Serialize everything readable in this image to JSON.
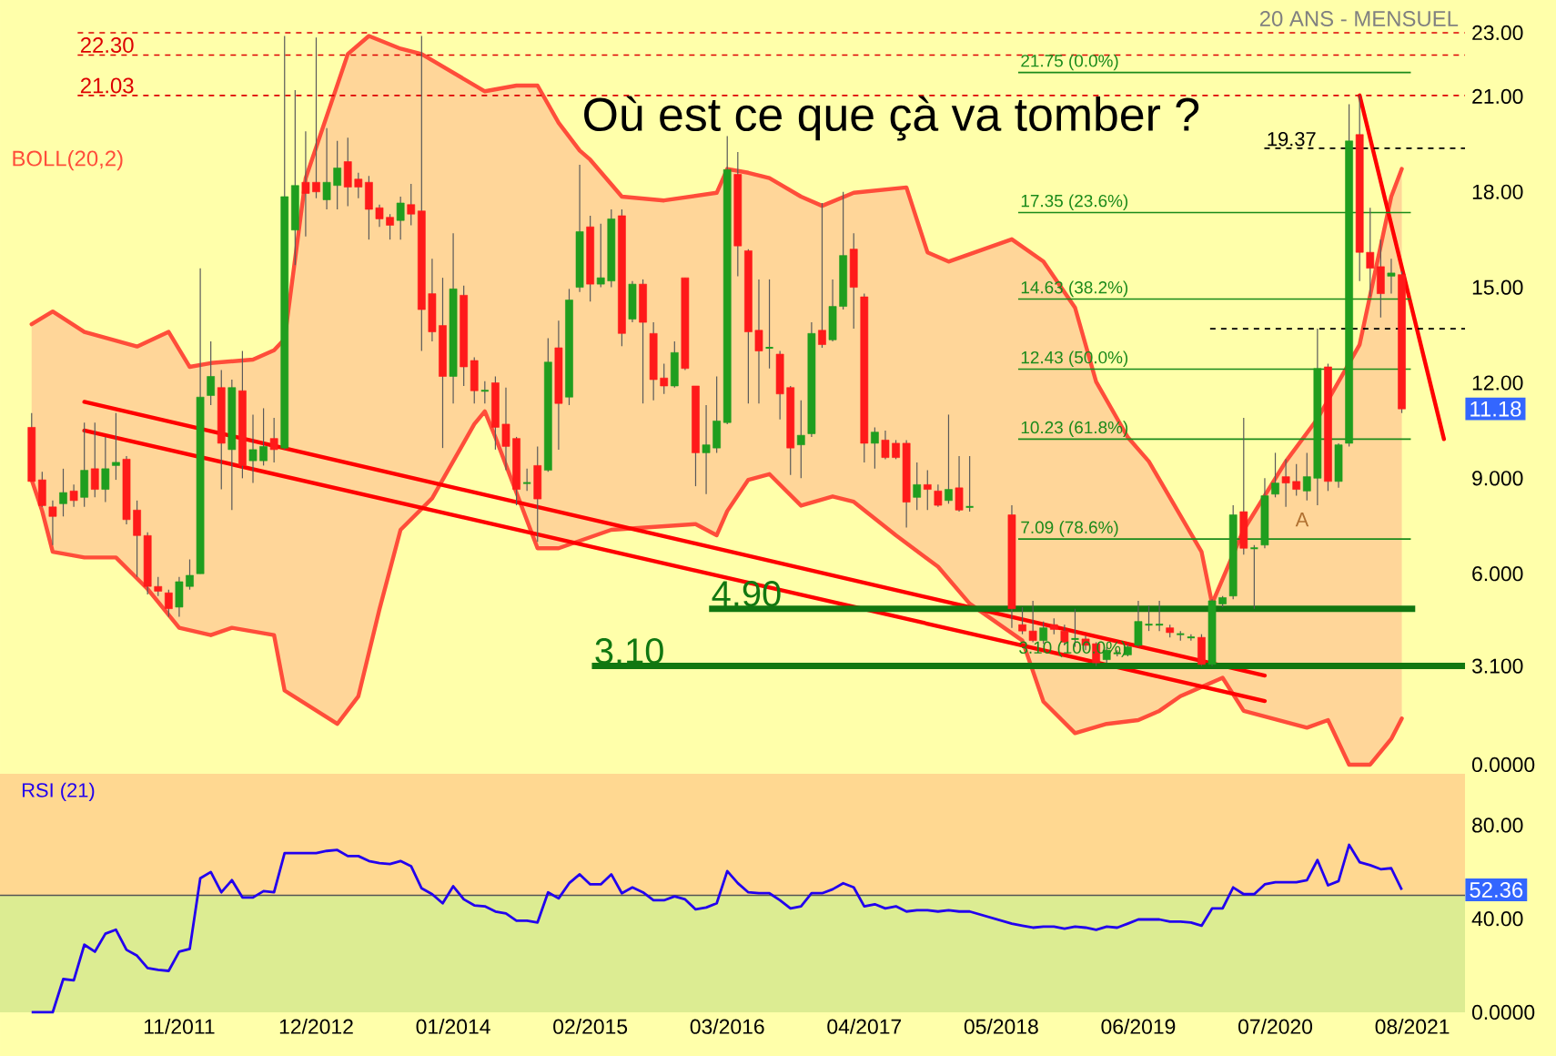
{
  "chart_data": [
    {
      "type": "candlestick",
      "subtitle": "20 ANS - MENSUEL",
      "tick_labels": "y",
      "legend": "top left",
      "xlim": [
        "2010-06",
        "2022-01"
      ],
      "ylim": [
        0,
        23
      ],
      "yticks": [
        {
          "value": 0,
          "label": "0.0000"
        },
        {
          "value": 3.1,
          "label": "3.100"
        },
        {
          "value": 6,
          "label": "6.000"
        },
        {
          "value": 9,
          "label": "9.000"
        },
        {
          "value": 12,
          "label": "12.00"
        },
        {
          "value": 15,
          "label": "15.00"
        },
        {
          "value": 18,
          "label": "18.00"
        },
        {
          "value": 21,
          "label": "21.00"
        },
        {
          "value": 23,
          "label": "23.00"
        }
      ],
      "x": [
        "2010-09",
        "2010-10",
        "2010-11",
        "2010-12",
        "2011-01",
        "2011-02",
        "2011-03",
        "2011-04",
        "2011-05",
        "2011-06",
        "2011-07",
        "2011-08",
        "2011-09",
        "2011-10",
        "2011-11",
        "2011-12",
        "2012-01",
        "2012-02",
        "2012-03",
        "2012-04",
        "2012-05",
        "2012-06",
        "2012-07",
        "2012-08",
        "2012-09",
        "2012-10",
        "2012-11",
        "2012-12",
        "2013-01",
        "2013-02",
        "2013-03",
        "2013-04",
        "2013-05",
        "2013-06",
        "2013-07",
        "2013-08",
        "2013-09",
        "2013-10",
        "2013-11",
        "2013-12",
        "2014-01",
        "2014-02",
        "2014-03",
        "2014-04",
        "2014-05",
        "2014-06",
        "2014-07",
        "2014-08",
        "2014-09",
        "2014-10",
        "2014-11",
        "2014-12",
        "2015-01",
        "2015-02",
        "2015-03",
        "2015-04",
        "2015-05",
        "2015-06",
        "2015-07",
        "2015-08",
        "2015-09",
        "2015-10",
        "2015-11",
        "2015-12",
        "2016-01",
        "2016-02",
        "2016-03",
        "2016-04",
        "2016-05",
        "2016-06",
        "2016-07",
        "2016-08",
        "2016-09",
        "2016-10",
        "2016-11",
        "2016-12",
        "2017-01",
        "2017-02",
        "2017-03",
        "2017-04",
        "2017-05",
        "2017-06",
        "2017-07",
        "2017-08",
        "2017-09",
        "2017-10",
        "2017-11",
        "2017-12",
        "2018-01",
        "2018-02",
        "2018-06",
        "2018-07",
        "2018-08",
        "2018-09",
        "2018-10",
        "2018-11",
        "2018-12",
        "2019-01",
        "2019-02",
        "2019-03",
        "2019-04",
        "2019-05",
        "2019-06",
        "2019-07",
        "2019-08",
        "2019-09",
        "2019-10",
        "2019-11",
        "2019-12",
        "2020-01",
        "2020-02",
        "2020-03",
        "2020-04",
        "2020-05",
        "2020-06",
        "2020-07",
        "2020-08",
        "2020-09",
        "2020-10",
        "2020-11",
        "2020-12",
        "2021-01",
        "2021-02",
        "2021-03",
        "2021-04",
        "2021-05",
        "2021-06",
        "2021-07"
      ],
      "ohlc": [
        [
          10.6,
          11.05,
          8.9,
          8.9
        ],
        [
          8.95,
          9.2,
          8.1,
          8.14
        ],
        [
          8.1,
          8.3,
          6.9,
          7.8
        ],
        [
          8.2,
          9.3,
          7.8,
          8.55
        ],
        [
          8.6,
          8.8,
          8.1,
          8.3
        ],
        [
          8.4,
          10.75,
          8.1,
          9.25
        ],
        [
          9.3,
          10.75,
          8.4,
          8.65
        ],
        [
          8.65,
          10.3,
          8.25,
          9.3
        ],
        [
          9.4,
          11.05,
          8.95,
          9.5
        ],
        [
          9.6,
          9.7,
          7.55,
          7.7
        ],
        [
          8.0,
          8.3,
          5.9,
          7.2
        ],
        [
          7.2,
          7.3,
          5.35,
          5.6
        ],
        [
          5.6,
          5.9,
          5.3,
          5.45
        ],
        [
          5.4,
          5.5,
          4.65,
          4.9
        ],
        [
          4.95,
          5.9,
          4.65,
          5.75
        ],
        [
          5.6,
          6.45,
          5.5,
          5.95
        ],
        [
          6.0,
          15.6,
          6.0,
          11.55
        ],
        [
          11.6,
          13.3,
          11.3,
          12.2
        ],
        [
          11.85,
          12.4,
          8.65,
          10.1
        ],
        [
          9.9,
          12.1,
          8.0,
          11.85
        ],
        [
          11.75,
          13.0,
          9.0,
          9.4
        ],
        [
          9.55,
          11.0,
          8.85,
          9.9
        ],
        [
          9.55,
          11.2,
          9.4,
          10.0
        ],
        [
          10.25,
          10.9,
          9.5,
          9.9
        ],
        [
          9.95,
          22.9,
          9.9,
          17.85
        ],
        [
          16.8,
          21.2,
          15.7,
          18.2
        ],
        [
          18.3,
          19.9,
          16.6,
          17.95
        ],
        [
          18.3,
          22.85,
          17.8,
          18.0
        ],
        [
          17.75,
          20.0,
          17.45,
          18.3
        ],
        [
          18.2,
          19.6,
          17.45,
          18.75
        ],
        [
          18.95,
          19.7,
          17.55,
          18.15
        ],
        [
          18.4,
          18.6,
          17.8,
          18.15
        ],
        [
          18.3,
          18.5,
          16.5,
          17.45
        ],
        [
          17.5,
          17.6,
          16.9,
          17.15
        ],
        [
          17.2,
          17.3,
          16.5,
          16.95
        ],
        [
          17.1,
          17.85,
          16.5,
          17.65
        ],
        [
          17.6,
          18.25,
          16.95,
          17.3
        ],
        [
          17.4,
          22.9,
          13.0,
          14.3
        ],
        [
          14.8,
          15.9,
          13.3,
          13.6
        ],
        [
          13.8,
          15.3,
          9.95,
          12.2
        ],
        [
          12.2,
          16.7,
          11.35,
          14.95
        ],
        [
          14.75,
          15.05,
          11.9,
          12.5
        ],
        [
          12.7,
          12.8,
          11.35,
          11.75
        ],
        [
          11.75,
          12.05,
          11.35,
          11.75
        ],
        [
          12.0,
          12.2,
          9.9,
          10.6
        ],
        [
          10.7,
          11.85,
          9.25,
          10.0
        ],
        [
          10.25,
          10.3,
          8.15,
          8.65
        ],
        [
          8.85,
          9.3,
          8.6,
          8.85
        ],
        [
          9.4,
          10.0,
          7.0,
          8.35
        ],
        [
          9.25,
          13.4,
          9.2,
          12.65
        ],
        [
          13.1,
          13.95,
          9.9,
          11.35
        ],
        [
          11.55,
          14.95,
          11.3,
          14.6
        ],
        [
          15.0,
          18.85,
          14.85,
          16.75
        ],
        [
          16.9,
          17.25,
          14.55,
          15.1
        ],
        [
          15.1,
          17.0,
          15.0,
          15.3
        ],
        [
          15.2,
          17.45,
          15.0,
          17.15
        ],
        [
          17.25,
          17.45,
          13.15,
          13.55
        ],
        [
          14.0,
          15.2,
          13.9,
          15.1
        ],
        [
          15.1,
          15.25,
          11.35,
          13.9
        ],
        [
          13.55,
          13.9,
          11.45,
          12.1
        ],
        [
          12.15,
          12.6,
          11.65,
          11.9
        ],
        [
          11.9,
          13.3,
          11.85,
          12.95
        ],
        [
          15.3,
          15.3,
          12.4,
          12.45
        ],
        [
          11.9,
          11.9,
          8.75,
          9.8
        ],
        [
          9.8,
          11.3,
          8.5,
          10.05
        ],
        [
          9.95,
          12.2,
          9.8,
          10.8
        ],
        [
          10.75,
          19.75,
          10.7,
          18.7
        ],
        [
          18.55,
          19.25,
          15.35,
          16.3
        ],
        [
          16.15,
          16.2,
          11.35,
          13.6
        ],
        [
          13.65,
          15.25,
          11.35,
          13.0
        ],
        [
          13.1,
          15.25,
          12.45,
          13.1
        ],
        [
          12.9,
          13.0,
          10.85,
          11.65
        ],
        [
          11.85,
          11.9,
          9.1,
          9.95
        ],
        [
          10.05,
          11.45,
          9.0,
          10.35
        ],
        [
          10.4,
          13.9,
          10.3,
          13.55
        ],
        [
          13.65,
          17.65,
          13.1,
          13.2
        ],
        [
          13.35,
          15.25,
          13.3,
          14.4
        ],
        [
          14.4,
          18.0,
          14.3,
          16.0
        ],
        [
          16.2,
          16.7,
          13.7,
          15.0
        ],
        [
          14.7,
          14.8,
          9.5,
          10.1
        ],
        [
          10.1,
          10.6,
          9.3,
          10.45
        ],
        [
          10.2,
          10.5,
          9.6,
          9.65
        ],
        [
          10.1,
          10.2,
          9.6,
          9.65
        ],
        [
          10.1,
          10.2,
          7.45,
          8.25
        ],
        [
          8.4,
          9.5,
          8.0,
          8.8
        ],
        [
          8.8,
          9.25,
          8.0,
          8.65
        ],
        [
          8.6,
          8.8,
          8.1,
          8.15
        ],
        [
          8.3,
          11.0,
          8.2,
          8.65
        ],
        [
          8.7,
          9.7,
          7.95,
          8.0
        ],
        [
          8.1,
          9.7,
          7.95,
          8.1
        ],
        [
          7.85,
          8.15,
          4.3,
          4.9
        ],
        [
          4.4,
          4.95,
          4.1,
          4.2
        ],
        [
          4.2,
          5.15,
          3.85,
          3.9
        ],
        [
          3.9,
          4.5,
          3.8,
          4.3
        ],
        [
          4.4,
          4.6,
          4.1,
          4.25
        ],
        [
          4.2,
          4.4,
          3.75,
          3.85
        ],
        [
          3.95,
          4.9,
          3.7,
          3.95
        ],
        [
          3.95,
          4.05,
          3.6,
          3.75
        ],
        [
          3.8,
          3.85,
          3.1,
          3.2
        ],
        [
          3.3,
          3.7,
          3.2,
          3.6
        ],
        [
          3.5,
          3.6,
          3.4,
          3.5
        ],
        [
          3.45,
          3.8,
          3.4,
          3.7
        ],
        [
          3.75,
          5.15,
          3.7,
          4.5
        ],
        [
          4.4,
          5.0,
          4.2,
          4.4
        ],
        [
          4.4,
          5.15,
          4.2,
          4.4
        ],
        [
          4.3,
          4.4,
          4.0,
          4.15
        ],
        [
          4.1,
          4.2,
          3.9,
          4.1
        ],
        [
          4.0,
          4.1,
          3.9,
          4.0
        ],
        [
          4.0,
          4.1,
          3.1,
          3.15
        ],
        [
          3.15,
          5.2,
          3.1,
          5.15
        ],
        [
          5.05,
          5.3,
          4.95,
          5.25
        ],
        [
          5.3,
          8.15,
          5.2,
          7.85
        ],
        [
          7.95,
          10.9,
          6.6,
          6.8
        ],
        [
          6.8,
          6.9,
          4.9,
          6.8
        ],
        [
          6.9,
          9.0,
          6.8,
          8.45
        ],
        [
          8.5,
          9.8,
          8.4,
          8.85
        ],
        [
          9.05,
          9.6,
          8.1,
          8.85
        ],
        [
          8.9,
          9.45,
          8.45,
          8.65
        ],
        [
          8.6,
          9.8,
          8.3,
          9.05
        ],
        [
          9.0,
          13.7,
          8.15,
          12.45
        ],
        [
          12.5,
          12.6,
          8.6,
          8.9
        ],
        [
          8.9,
          10.1,
          8.7,
          10.05
        ],
        [
          10.1,
          20.75,
          10.0,
          19.6
        ],
        [
          19.8,
          21.03,
          15.2,
          16.1
        ],
        [
          16.1,
          17.5,
          14.7,
          15.6
        ],
        [
          15.65,
          16.5,
          14.05,
          14.8
        ],
        [
          15.35,
          15.9,
          14.8,
          15.45
        ],
        [
          15.4,
          15.5,
          11.05,
          11.18
        ]
      ],
      "series": [
        {
          "type": "line",
          "name": "BOLL(20,2)",
          "color": "#ff4d3a",
          "x": [
            "2010-09",
            "2010-11",
            "2011-02",
            "2011-07",
            "2011-10",
            "2011-12",
            "2012-02",
            "2012-06",
            "2012-08",
            "2012-09",
            "2012-11",
            "2013-03",
            "2013-05",
            "2013-08",
            "2013-10",
            "2014-04",
            "2014-07",
            "2014-09",
            "2014-11",
            "2015-01",
            "2015-02",
            "2015-05",
            "2015-09",
            "2016-02",
            "2016-03",
            "2016-05",
            "2016-07",
            "2016-10",
            "2016-12",
            "2017-03",
            "2017-08",
            "2017-10",
            "2017-12",
            "2018-06",
            "2018-09",
            "2018-12",
            "2019-02",
            "2019-05",
            "2019-07",
            "2019-12",
            "2020-01",
            "2020-04",
            "2020-08",
            "2020-11",
            "2021-03",
            "2021-06",
            "2021-07"
          ],
          "values": [
            13.84,
            14.24,
            13.6,
            13.14,
            13.6,
            12.5,
            12.62,
            12.73,
            13.02,
            13.37,
            18.43,
            22.33,
            22.9,
            22.5,
            22.33,
            21.16,
            21.34,
            21.34,
            20.17,
            19.3,
            19.01,
            17.85,
            17.73,
            17.97,
            18.72,
            18.6,
            18.43,
            17.85,
            17.56,
            17.97,
            18.14,
            16.1,
            15.81,
            16.51,
            15.81,
            14.36,
            12.03,
            10.29,
            9.53,
            6.69,
            5.06,
            7.38,
            9.53,
            10.87,
            13.2,
            17.85,
            18.72
          ]
        },
        {
          "type": "line",
          "color": "#ff4d3a",
          "x": [
            "2010-09",
            "2010-10",
            "2010-11",
            "2011-02",
            "2011-05",
            "2011-08",
            "2011-11",
            "2012-02",
            "2012-04",
            "2012-08",
            "2012-09",
            "2013-02",
            "2013-04",
            "2013-06",
            "2013-08",
            "2013-11",
            "2014-03",
            "2014-04",
            "2014-05",
            "2014-09",
            "2014-11",
            "2015-04",
            "2015-12",
            "2016-02",
            "2016-03",
            "2016-05",
            "2016-07",
            "2016-10",
            "2017-01",
            "2017-03",
            "2017-07",
            "2017-11",
            "2018-02",
            "2018-07",
            "2018-09",
            "2018-12",
            "2019-03",
            "2019-06",
            "2019-08",
            "2019-10",
            "2020-02",
            "2020-04",
            "2020-10",
            "2020-12",
            "2021-02",
            "2021-04",
            "2021-06",
            "2021-07"
          ],
          "values": [
            8.95,
            7.97,
            6.69,
            6.51,
            6.51,
            5.52,
            4.3,
            4.07,
            4.3,
            4.07,
            2.33,
            1.28,
            2.15,
            4.88,
            7.38,
            8.37,
            10.7,
            11.1,
            10.29,
            6.8,
            6.8,
            7.38,
            7.56,
            7.21,
            7.97,
            8.95,
            9.13,
            8.14,
            8.43,
            8.26,
            7.21,
            6.22,
            5.06,
            3.9,
            1.98,
            0.99,
            1.28,
            1.4,
            1.69,
            2.15,
            2.73,
            1.69,
            1.16,
            1.4,
            0,
            0,
            0.81,
            1.45
          ]
        },
        {
          "type": "line",
          "color": "#ff0000",
          "x": [
            "2011-02",
            "2020-06"
          ],
          "values": [
            11.4,
            2.8
          ]
        },
        {
          "type": "line",
          "color": "#ff0000",
          "x": [
            "2011-02",
            "2020-06"
          ],
          "values": [
            10.5,
            2.0
          ]
        },
        {
          "type": "line",
          "color": "#ff0000",
          "x": [
            "2021-03",
            "2021-11"
          ],
          "values": [
            21.03,
            10.23
          ]
        }
      ],
      "ref_lines": [
        {
          "axis": "y",
          "value": 23,
          "color": "#dd0000",
          "line_style": "dashed"
        },
        {
          "axis": "y",
          "value": 22.3,
          "label": "22.30",
          "color": "#dd0000",
          "line_style": "dashed"
        },
        {
          "axis": "y",
          "value": 21.03,
          "label": "21.03",
          "color": "#dd0000",
          "line_style": "dashed"
        },
        {
          "axis": "y",
          "value": 21.75,
          "label": "21.75  (0.0%)",
          "color": "#1a8a1a"
        },
        {
          "axis": "y",
          "value": 17.35,
          "label": "17.35  (23.6%)",
          "color": "#1a8a1a"
        },
        {
          "axis": "y",
          "value": 14.63,
          "label": "14.63  (38.2%)",
          "color": "#1a8a1a"
        },
        {
          "axis": "y",
          "value": 12.43,
          "label": "12.43  (50.0%)",
          "color": "#1a8a1a"
        },
        {
          "axis": "y",
          "value": 10.23,
          "label": "10.23  (61.8%)",
          "color": "#1a8a1a"
        },
        {
          "axis": "y",
          "value": 7.09,
          "label": "7.09  (78.6%)",
          "color": "#1a8a1a"
        },
        {
          "axis": "y",
          "value": 4.9,
          "label": "4.90",
          "color": "#117711"
        },
        {
          "axis": "y",
          "value": 3.1,
          "label": "3.10",
          "color": "#117711"
        },
        {
          "axis": "y",
          "value": 19.37,
          "label": "19.37",
          "color": "#000000",
          "line_style": "dashed"
        },
        {
          "axis": "y",
          "value": 13.7,
          "color": "#000000",
          "line_style": "dashed"
        }
      ],
      "annotations": [
        "Où est ce que çà va tomber ?",
        {
          "text": "11.18",
          "y": 11.18
        },
        "A",
        "3.10  (100.0%)"
      ]
    },
    {
      "type": "line",
      "title": "RSI (21)",
      "color": "#2200ee",
      "xlim": [
        "2010-06",
        "2022-01"
      ],
      "xticks": [
        {
          "value": "2011-11",
          "label": "11/2011"
        },
        {
          "value": "2012-12",
          "label": "12/2012"
        },
        {
          "value": "2014-01",
          "label": "01/2014"
        },
        {
          "value": "2015-02",
          "label": "02/2015"
        },
        {
          "value": "2016-03",
          "label": "03/2016"
        },
        {
          "value": "2017-04",
          "label": "04/2017"
        },
        {
          "value": "2018-05",
          "label": "05/2018"
        },
        {
          "value": "2019-06",
          "label": "06/2019"
        },
        {
          "value": "2020-07",
          "label": "07/2020"
        },
        {
          "value": "2021-08",
          "label": "08/2021"
        }
      ],
      "ylim": [
        0,
        102
      ],
      "yticks": [
        {
          "value": 0,
          "label": "0.0000"
        },
        {
          "value": 40,
          "label": "40.00"
        },
        {
          "value": 80,
          "label": "80.00"
        }
      ],
      "x": [
        "2010-09",
        "2010-10",
        "2010-11",
        "2010-12",
        "2011-01",
        "2011-02",
        "2011-03",
        "2011-04",
        "2011-05",
        "2011-06",
        "2011-07",
        "2011-08",
        "2011-09",
        "2011-10",
        "2011-11",
        "2011-12",
        "2012-01",
        "2012-02",
        "2012-03",
        "2012-04",
        "2012-05",
        "2012-06",
        "2012-07",
        "2012-08",
        "2012-09",
        "2012-10",
        "2012-11",
        "2012-12",
        "2013-01",
        "2013-02",
        "2013-03",
        "2013-04",
        "2013-05",
        "2013-06",
        "2013-07",
        "2013-08",
        "2013-09",
        "2013-10",
        "2013-11",
        "2013-12",
        "2014-01",
        "2014-02",
        "2014-03",
        "2014-04",
        "2014-05",
        "2014-06",
        "2014-07",
        "2014-08",
        "2014-09",
        "2014-10",
        "2014-11",
        "2014-12",
        "2015-01",
        "2015-02",
        "2015-03",
        "2015-04",
        "2015-05",
        "2015-06",
        "2015-07",
        "2015-08",
        "2015-09",
        "2015-10",
        "2015-11",
        "2015-12",
        "2016-01",
        "2016-02",
        "2016-03",
        "2016-04",
        "2016-05",
        "2016-06",
        "2016-07",
        "2016-08",
        "2016-09",
        "2016-10",
        "2016-11",
        "2016-12",
        "2017-01",
        "2017-02",
        "2017-03",
        "2017-04",
        "2017-05",
        "2017-06",
        "2017-07",
        "2017-08",
        "2017-09",
        "2017-10",
        "2017-11",
        "2017-12",
        "2018-01",
        "2018-02",
        "2018-06",
        "2018-07",
        "2018-08",
        "2018-09",
        "2018-10",
        "2018-11",
        "2018-12",
        "2019-01",
        "2019-02",
        "2019-03",
        "2019-04",
        "2019-05",
        "2019-06",
        "2019-07",
        "2019-08",
        "2019-09",
        "2019-10",
        "2019-11",
        "2019-12",
        "2020-01",
        "2020-02",
        "2020-03",
        "2020-04",
        "2020-05",
        "2020-06",
        "2020-07",
        "2020-08",
        "2020-09",
        "2020-10",
        "2020-11",
        "2020-12",
        "2021-01",
        "2021-02",
        "2021-03",
        "2021-04",
        "2021-05",
        "2021-06",
        "2021-07"
      ],
      "values": [
        0,
        0,
        0,
        14.2,
        13.7,
        28.9,
        25.9,
        33.6,
        35.3,
        26.7,
        24.2,
        18.9,
        18.1,
        17.7,
        25.9,
        27.1,
        57.3,
        60,
        51.3,
        56.5,
        49.1,
        49.1,
        51.8,
        51.3,
        68.1,
        68.1,
        68.1,
        68.1,
        69,
        69.4,
        66.8,
        66.8,
        64.7,
        63.8,
        63.4,
        64.7,
        62.5,
        53,
        50.5,
        46.6,
        53.9,
        48.3,
        45.7,
        45.3,
        43.1,
        42.3,
        39.2,
        39.2,
        38.4,
        51.3,
        48.7,
        55.2,
        59,
        54.7,
        54.7,
        59,
        50.9,
        53.4,
        51.3,
        47.9,
        47.9,
        49.6,
        48.3,
        44,
        44.8,
        46.6,
        60.4,
        55.2,
        51.3,
        50.9,
        50.9,
        47.9,
        44.4,
        45.3,
        50.9,
        50.9,
        52.6,
        55.2,
        53.4,
        45.3,
        46.2,
        44.4,
        45.3,
        43.1,
        43.6,
        43.6,
        43.1,
        43.6,
        43.1,
        43.1,
        37.9,
        37,
        36.2,
        36.6,
        36.6,
        35.8,
        36.6,
        36.2,
        35.3,
        36.6,
        36.2,
        37.9,
        39.7,
        39.7,
        39.7,
        38.8,
        38.8,
        38.4,
        37,
        44.4,
        44.4,
        53.4,
        50.5,
        50.5,
        54.7,
        55.6,
        55.6,
        55.6,
        56.5,
        65.1,
        54.3,
        56.1,
        71.6,
        64.2,
        62.9,
        61.2,
        61.6,
        52.36
      ],
      "bands": [
        {
          "axis": "y",
          "from": 50,
          "to": 102,
          "color": "#ffd891"
        },
        {
          "axis": "y",
          "from": 0,
          "to": 50,
          "color": "#dcec92"
        }
      ],
      "ref_lines": [
        {
          "axis": "y",
          "value": 50,
          "color": "#555555"
        }
      ],
      "annotations": [
        {
          "text": "52.36",
          "y": 52.36
        }
      ]
    }
  ]
}
